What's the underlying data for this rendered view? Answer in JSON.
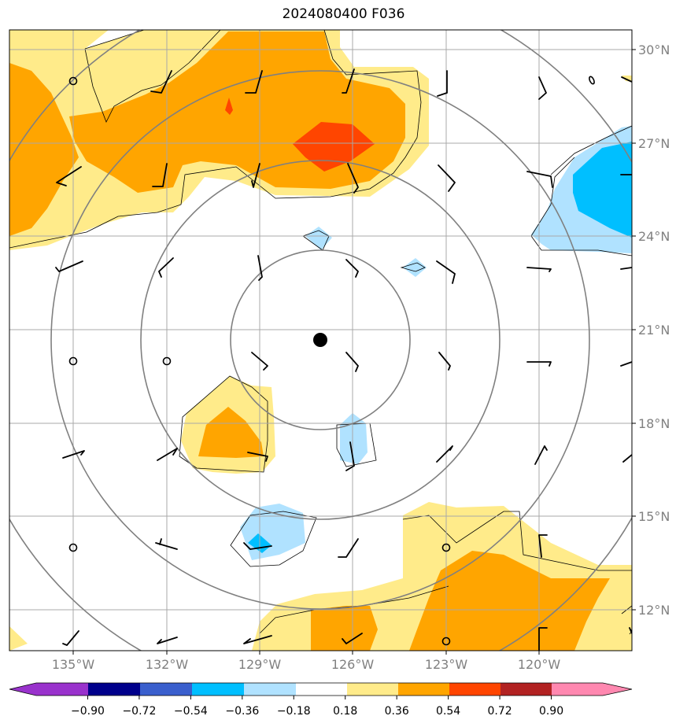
{
  "title": "2024080400 F036",
  "chart_data": {
    "type": "heatmap",
    "title": "2024080400 F036",
    "x_ticks": [
      "135°W",
      "132°W",
      "129°W",
      "126°W",
      "123°W",
      "120°W"
    ],
    "y_ticks": [
      "30°N",
      "27°N",
      "24°N",
      "21°N",
      "18°N",
      "15°N",
      "12°N"
    ],
    "lon_range": [
      -137.1,
      -117.0
    ],
    "lat_range": [
      10.7,
      30.7
    ],
    "center": {
      "lon": -127.1,
      "lat": 20.65
    },
    "colorbar": {
      "ticks": [
        "−0.90",
        "−0.72",
        "−0.54",
        "−0.36",
        "−0.18",
        "0.18",
        "0.36",
        "0.54",
        "0.72",
        "0.90"
      ],
      "colors": [
        "#9932cc",
        "#00008b",
        "#3a5fcd",
        "#00bfff",
        "#b0e2ff",
        "#ffffff",
        "#ffeb8a",
        "#ffa500",
        "#ff4500",
        "#b22222",
        "#ff88b0"
      ]
    }
  }
}
